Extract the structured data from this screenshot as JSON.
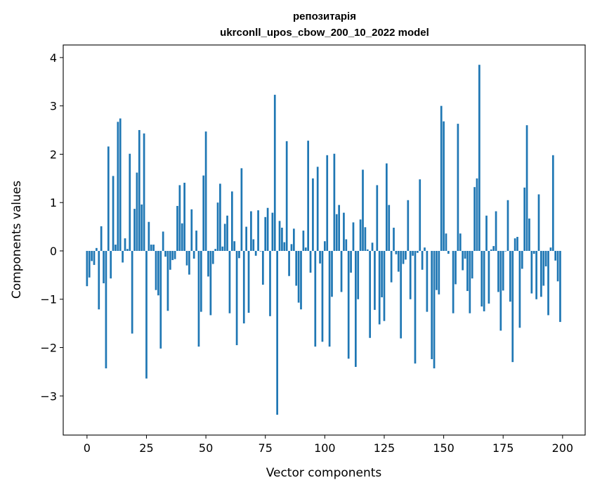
{
  "chart_data": {
    "type": "bar",
    "title": [
      "репозитарія",
      "ukrconll_upos_cbow_200_10_2022 model"
    ],
    "xlabel": "Vector components",
    "ylabel": "Components values",
    "xlim": [
      -10,
      209.5
    ],
    "ylim": [
      -3.81,
      4.26
    ],
    "xticks": [
      0,
      25,
      50,
      75,
      100,
      125,
      150,
      175,
      200
    ],
    "yticks": [
      -3,
      -2,
      -1,
      0,
      1,
      2,
      3,
      4
    ],
    "ytick_labels": [
      "−3",
      "−2",
      "−1",
      "0",
      "1",
      "2",
      "3",
      "4"
    ],
    "grid": false,
    "color": "#1f77b4",
    "values": [
      -0.73,
      -0.55,
      -0.21,
      -0.29,
      0.06,
      -1.21,
      0.51,
      -0.67,
      -2.43,
      2.16,
      -0.57,
      1.55,
      0.13,
      2.67,
      2.74,
      -0.24,
      0.26,
      0.04,
      2.01,
      -1.71,
      0.87,
      1.62,
      2.5,
      0.96,
      2.43,
      -2.64,
      0.6,
      0.13,
      0.13,
      -0.81,
      -0.92,
      -2.02,
      0.4,
      -0.12,
      -1.24,
      -0.39,
      -0.19,
      -0.17,
      0.93,
      1.36,
      0.57,
      1.41,
      -0.3,
      -0.49,
      0.86,
      -0.16,
      0.42,
      -1.98,
      -1.26,
      1.56,
      2.47,
      -0.53,
      -1.33,
      -0.27,
      0.04,
      1.0,
      1.39,
      0.09,
      0.56,
      0.73,
      -1.29,
      1.23,
      0.2,
      -1.95,
      -0.15,
      1.71,
      -1.5,
      0.5,
      -1.28,
      0.82,
      0.24,
      -0.1,
      0.84,
      -0.01,
      -0.7,
      0.7,
      0.89,
      -1.35,
      0.79,
      3.23,
      -3.39,
      0.62,
      0.48,
      0.18,
      2.27,
      -0.52,
      0.14,
      0.46,
      -0.72,
      -1.07,
      -1.21,
      0.42,
      0.07,
      2.28,
      -0.45,
      1.5,
      -1.98,
      1.74,
      -0.26,
      -1.88,
      0.2,
      1.98,
      -1.98,
      -0.95,
      2.01,
      0.76,
      0.95,
      -0.85,
      0.79,
      0.24,
      -2.23,
      -0.45,
      0.59,
      -2.4,
      -1.0,
      0.65,
      1.68,
      0.49,
      0.03,
      -1.8,
      0.17,
      -1.22,
      1.36,
      -1.52,
      -0.96,
      -1.45,
      1.81,
      0.95,
      -0.65,
      0.48,
      -0.07,
      -0.43,
      -1.81,
      -0.27,
      -0.18,
      1.05,
      -1.0,
      -0.1,
      -2.33,
      -0.04,
      1.48,
      -0.39,
      0.07,
      -1.26,
      0.0,
      -2.24,
      -2.43,
      -0.81,
      -0.9,
      3.0,
      2.68,
      0.36,
      -0.06,
      0.0,
      -1.29,
      -0.69,
      2.63,
      0.36,
      -0.4,
      -0.16,
      -0.83,
      -1.29,
      -0.57,
      1.32,
      1.5,
      3.85,
      -1.15,
      -1.25,
      0.73,
      -1.09,
      0.03,
      0.1,
      0.82,
      -0.85,
      -1.65,
      -0.82,
      -0.01,
      1.05,
      -1.05,
      -2.3,
      0.26,
      0.29,
      -1.59,
      -0.37,
      1.31,
      2.6,
      0.67,
      -0.88,
      -0.06,
      -1.0,
      1.17,
      -0.95,
      -0.72,
      -0.32,
      -1.33,
      0.07,
      1.98,
      -0.2,
      -0.63,
      -1.47
    ]
  }
}
